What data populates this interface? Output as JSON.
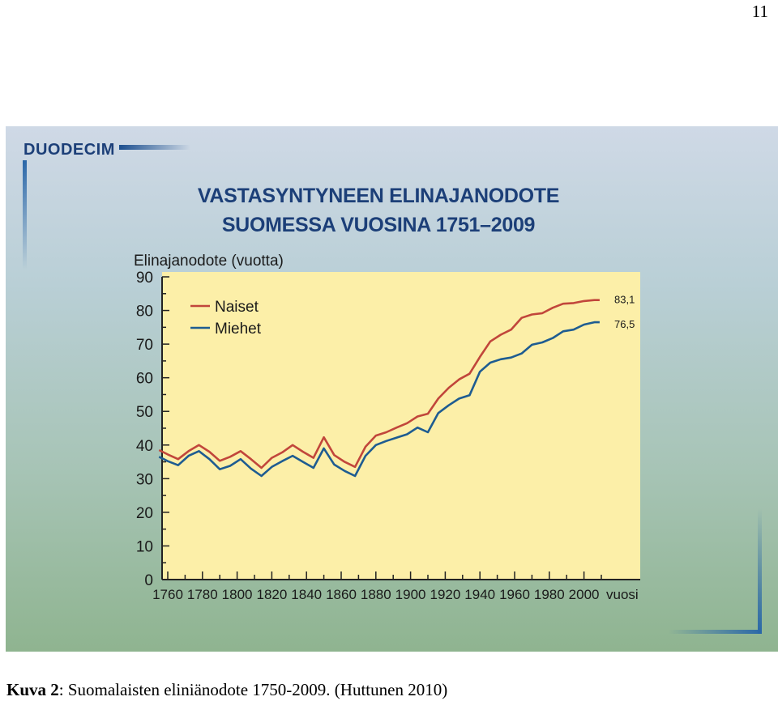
{
  "page_number": "11",
  "figure": {
    "logo": "DUODECIM",
    "title_line1": "VASTASYNTYNEEN ELINAJANODOTE",
    "title_line2": "SUOMESSA VUOSINA 1751–2009"
  },
  "caption": {
    "label": "Kuva 2",
    "text": ": Suomalaisten eliniänodote 1750-2009. (Huttunen 2010)"
  },
  "colors": {
    "plot_background": "#fcefa8",
    "naiset": "#c1463b",
    "miehet": "#1e5c91",
    "title": "#1c3f78"
  },
  "chart_data": {
    "type": "line",
    "title": "VASTASYNTYNEEN ELINAJANODOTE SUOMESSA VUOSINA 1751–2009",
    "ylabel": "Elinajanodote (vuotta)",
    "xlabel": "vuosi",
    "xlim": [
      1751,
      2020
    ],
    "ylim": [
      0,
      90
    ],
    "y_ticks": [
      0,
      10,
      20,
      30,
      40,
      50,
      60,
      70,
      80,
      90
    ],
    "x_ticks": [
      1760,
      1780,
      1800,
      1820,
      1840,
      1860,
      1880,
      1900,
      1920,
      1940,
      1960,
      1980,
      2000
    ],
    "grid": false,
    "legend_position": "top-left",
    "series": [
      {
        "name": "Naiset",
        "end_label": "83,1",
        "x": [
          1755,
          1760,
          1766,
          1772,
          1778,
          1784,
          1790,
          1796,
          1802,
          1808,
          1814,
          1820,
          1826,
          1832,
          1838,
          1844,
          1850,
          1856,
          1862,
          1868,
          1874,
          1880,
          1886,
          1892,
          1898,
          1904,
          1910,
          1916,
          1922,
          1928,
          1934,
          1940,
          1946,
          1952,
          1958,
          1964,
          1970,
          1976,
          1982,
          1988,
          1994,
          2000,
          2006,
          2009
        ],
        "y": [
          38.5,
          37.2,
          35.8,
          38.2,
          40.0,
          38.0,
          35.3,
          36.5,
          38.2,
          35.8,
          33.2,
          36.2,
          37.8,
          40.0,
          38.0,
          36.2,
          42.3,
          37.0,
          35.0,
          33.5,
          39.5,
          42.8,
          43.8,
          45.2,
          46.5,
          48.5,
          49.3,
          53.8,
          57.0,
          59.5,
          61.2,
          66.2,
          70.8,
          72.8,
          74.3,
          77.8,
          78.8,
          79.2,
          80.8,
          82.0,
          82.2,
          82.8,
          83.1,
          83.1
        ]
      },
      {
        "name": "Miehet",
        "end_label": "76,5",
        "x": [
          1755,
          1760,
          1766,
          1772,
          1778,
          1784,
          1790,
          1796,
          1802,
          1808,
          1814,
          1820,
          1826,
          1832,
          1838,
          1844,
          1850,
          1856,
          1862,
          1868,
          1874,
          1880,
          1886,
          1892,
          1898,
          1904,
          1910,
          1916,
          1922,
          1928,
          1934,
          1940,
          1946,
          1952,
          1958,
          1964,
          1970,
          1976,
          1982,
          1988,
          1994,
          2000,
          2006,
          2009
        ],
        "y": [
          36.5,
          35.2,
          34.0,
          36.8,
          38.2,
          35.8,
          32.8,
          33.8,
          35.8,
          33.0,
          30.8,
          33.5,
          35.2,
          36.8,
          35.0,
          33.2,
          39.0,
          34.2,
          32.3,
          30.8,
          36.8,
          40.0,
          41.2,
          42.2,
          43.2,
          45.2,
          43.8,
          49.5,
          51.8,
          53.8,
          54.8,
          61.8,
          64.5,
          65.5,
          66.0,
          67.2,
          69.8,
          70.5,
          71.8,
          73.8,
          74.3,
          75.8,
          76.5,
          76.5
        ]
      }
    ]
  }
}
